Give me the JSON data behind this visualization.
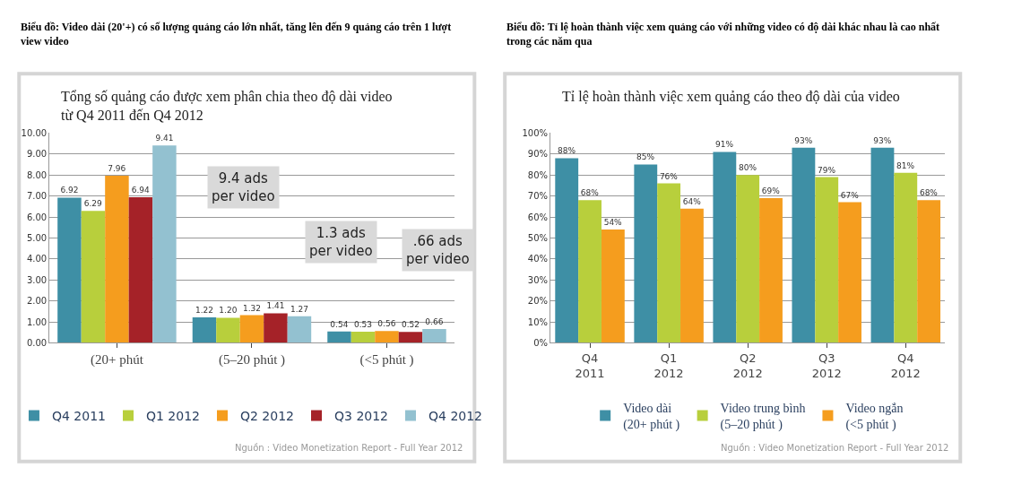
{
  "chart_data": [
    {
      "type": "bar",
      "title": "Biểu đồ: Video dài (20'+) có số lượng quảng cáo lớn nhất, tăng lên đến 9 quảng cáo trên 1 lượt\nview video",
      "subtitle": "Tổng số quảng cáo được xem phân chia theo độ dài video\ntừ Q4 2011 đến Q4 2012",
      "categories": [
        "(20+ phút",
        "(5–20 phút )",
        "(<5 phút )"
      ],
      "series": [
        {
          "name": "Q4 2011",
          "color": "#3e8fa5",
          "values": [
            6.92,
            1.22,
            0.54
          ],
          "value_labels": [
            "6.92",
            "1.22",
            "0.54"
          ]
        },
        {
          "name": "Q1 2012",
          "color": "#b8cf3c",
          "values": [
            6.29,
            1.2,
            0.53
          ],
          "value_labels": [
            "6.29",
            "1.20",
            "0.53"
          ]
        },
        {
          "name": "Q2 2012",
          "color": "#f59d1e",
          "values": [
            7.96,
            1.32,
            0.56
          ],
          "value_labels": [
            "7.96",
            "1.32",
            "0.56"
          ]
        },
        {
          "name": "Q3 2012",
          "color": "#a52228",
          "values": [
            6.94,
            1.41,
            0.52
          ],
          "value_labels": [
            "6.94",
            "1.41",
            "0.52"
          ]
        },
        {
          "name": "Q4 2012",
          "color": "#93c1d0",
          "values": [
            9.41,
            1.27,
            0.66
          ],
          "value_labels": [
            "9.41",
            "1.27",
            "0.66"
          ]
        }
      ],
      "ylim": [
        0,
        10
      ],
      "yticks": [
        {
          "value": 0,
          "label": "0.00"
        },
        {
          "value": 1,
          "label": "1.00"
        },
        {
          "value": 2,
          "label": "2.00"
        },
        {
          "value": 3,
          "label": "3.00"
        },
        {
          "value": 4,
          "label": "4.00"
        },
        {
          "value": 5,
          "label": "5.00"
        },
        {
          "value": 6,
          "label": "6.00"
        },
        {
          "value": 7,
          "label": "7.00"
        },
        {
          "value": 8,
          "label": "8.00"
        },
        {
          "value": 9,
          "label": "9.00"
        },
        {
          "value": 10,
          "label": "10.00"
        }
      ],
      "grid": "y",
      "legend": "bottom",
      "annotations": [
        "9.4 ads\nper video",
        "1.3 ads\nper video",
        ".66 ads\nper video",
        "Nguồn : Video Monetization Report - Full Year 2012"
      ]
    },
    {
      "type": "bar",
      "title": "Biểu đồ: Tỉ lệ hoàn thành việc xem quảng cáo với những video có độ dài khác nhau là cao nhất\ntrong các năm qua",
      "subtitle": "Tỉ lệ hoàn thành việc xem quảng cáo theo độ dài của video",
      "categories": [
        "Q4\n2011",
        "Q1\n2012",
        "Q2\n2012",
        "Q3\n2012",
        "Q4\n2012"
      ],
      "series": [
        {
          "name": "Video dài\n(20+ phút )",
          "color": "#3e8fa5",
          "values": [
            88,
            85,
            91,
            93,
            93
          ],
          "value_labels": [
            "88%",
            "85%",
            "91%",
            "93%",
            "93%"
          ]
        },
        {
          "name": "Video trung bình\n(5–20 phút )",
          "color": "#b8cf3c",
          "values": [
            68,
            76,
            80,
            79,
            81
          ],
          "value_labels": [
            "68%",
            "76%",
            "80%",
            "79%",
            "81%"
          ]
        },
        {
          "name": "Video ngắn\n(<5 phút )",
          "color": "#f59d1e",
          "values": [
            54,
            64,
            69,
            67,
            68
          ],
          "value_labels": [
            "54%",
            "64%",
            "69%",
            "67%",
            "68%"
          ]
        }
      ],
      "ylim": [
        0,
        100
      ],
      "yticks": [
        {
          "value": 0,
          "label": "0%"
        },
        {
          "value": 10,
          "label": "10%"
        },
        {
          "value": 20,
          "label": "20%"
        },
        {
          "value": 30,
          "label": "30%"
        },
        {
          "value": 40,
          "label": "40%"
        },
        {
          "value": 50,
          "label": "50%"
        },
        {
          "value": 60,
          "label": "60%"
        },
        {
          "value": 70,
          "label": "70%"
        },
        {
          "value": 80,
          "label": "80%"
        },
        {
          "value": 90,
          "label": "90%"
        },
        {
          "value": 100,
          "label": "100%"
        }
      ],
      "grid": "y",
      "legend": "bottom",
      "annotations": [
        "Nguồn : Video Monetization Report - Full Year 2012"
      ]
    }
  ]
}
